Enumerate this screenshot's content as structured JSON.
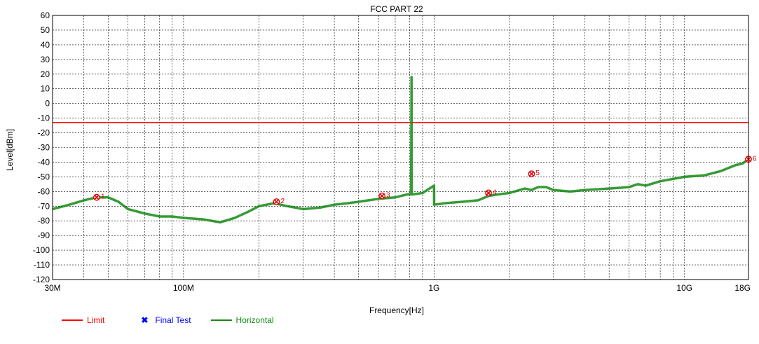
{
  "chart_data": {
    "type": "line",
    "title": "FCC PART 22",
    "xlabel": "Frequency[Hz]",
    "ylabel": "Level[dBm]",
    "xscale": "log",
    "xlim": [
      30000000,
      18000000000
    ],
    "ylim": [
      -120,
      60
    ],
    "yticks": [
      60,
      50,
      40,
      30,
      20,
      10,
      0,
      -10,
      -20,
      -30,
      -40,
      -50,
      -60,
      -70,
      -80,
      -90,
      -100,
      -110,
      -120
    ],
    "xtick_labels": [
      {
        "value": 30000000,
        "label": "30M"
      },
      {
        "value": 100000000,
        "label": "100M"
      },
      {
        "value": 1000000000,
        "label": "1G"
      },
      {
        "value": 10000000000,
        "label": "10G"
      },
      {
        "value": 18000000000,
        "label": "18G"
      }
    ],
    "grid": true,
    "legend_position": "bottom-left",
    "series": [
      {
        "name": "Limit",
        "color": "#ff0000",
        "x": [
          30000000,
          18000000000
        ],
        "y": [
          -13,
          -13
        ]
      },
      {
        "name": "Horizontal",
        "color": "#138a13",
        "x": [
          30000000,
          35000000,
          40000000,
          45000000,
          50000000,
          55000000,
          60000000,
          70000000,
          80000000,
          90000000,
          100000000,
          120000000,
          140000000,
          160000000,
          180000000,
          200000000,
          230000000,
          260000000,
          300000000,
          350000000,
          400000000,
          450000000,
          500000000,
          600000000,
          700000000,
          780000000,
          810000000,
          813000000,
          815000000,
          820000000,
          900000000,
          1000000000,
          1001000000,
          1100000000,
          1300000000,
          1500000000,
          1650000000,
          1800000000,
          2000000000,
          2300000000,
          2450000000,
          2600000000,
          2800000000,
          3000000000,
          3500000000,
          4000000000,
          5000000000,
          6000000000,
          6500000000,
          7000000000,
          8000000000,
          10000000000,
          12000000000,
          14000000000,
          16000000000,
          17000000000,
          18000000000
        ],
        "y": [
          -72,
          -69,
          -66,
          -64,
          -64,
          -67,
          -72,
          -75,
          -77,
          -77,
          -78,
          -79,
          -81,
          -78,
          -74,
          -70,
          -68,
          -70,
          -72,
          -71,
          -69,
          -68,
          -67,
          -65,
          -64,
          -62,
          -62,
          18,
          -62,
          -62,
          -61,
          -56,
          -69,
          -68,
          -67,
          -66,
          -63,
          -62,
          -61,
          -58,
          -59,
          -57,
          -57,
          -59,
          -60,
          -59,
          -58,
          -57,
          -55,
          -56,
          -53,
          -50,
          -49,
          -46,
          -42,
          -41,
          -38
        ]
      },
      {
        "name": "Final Test",
        "color": "#0000ff",
        "x": [],
        "y": []
      }
    ],
    "markers": [
      {
        "label": "1",
        "x": 45000000,
        "y": -64
      },
      {
        "label": "2",
        "x": 235000000,
        "y": -67
      },
      {
        "label": "3",
        "x": 620000000,
        "y": -63
      },
      {
        "label": "4",
        "x": 1650000000,
        "y": -61
      },
      {
        "label": "5",
        "x": 2450000000,
        "y": -48
      },
      {
        "label": "6",
        "x": 18000000000,
        "y": -38
      }
    ]
  },
  "legend": {
    "limit": "Limit",
    "final_test": "Final Test",
    "horizontal": "Horizontal"
  }
}
